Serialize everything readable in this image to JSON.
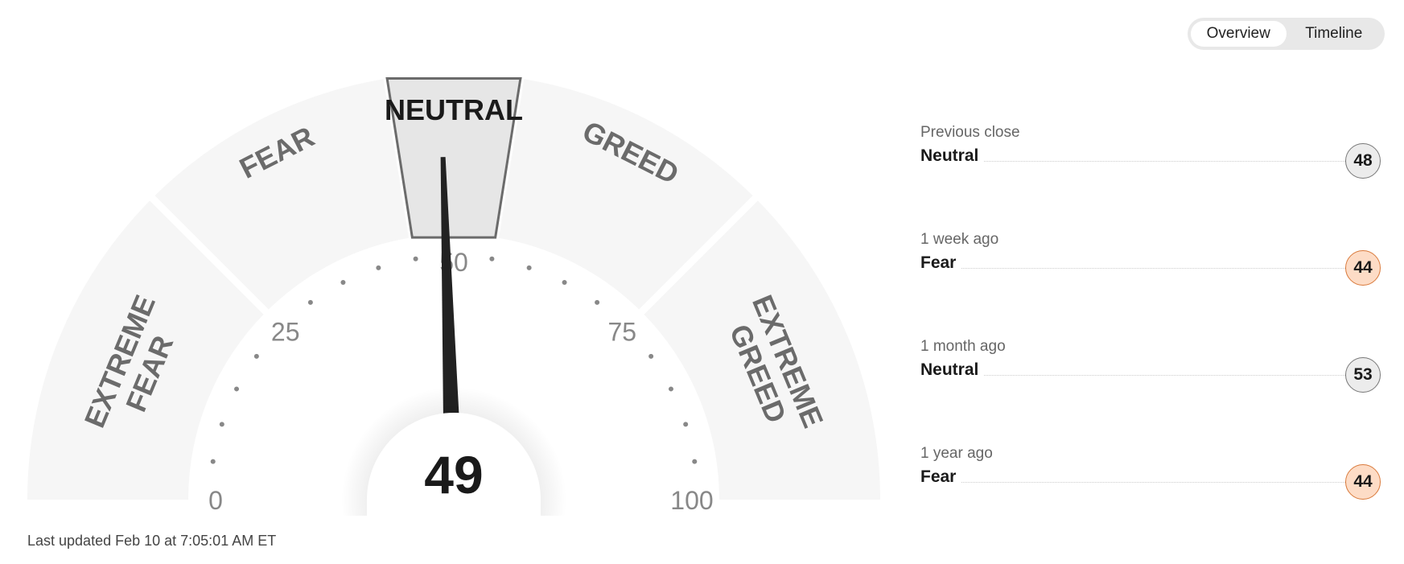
{
  "gauge": {
    "value": 49,
    "value_label": "49",
    "range": [
      0,
      100
    ],
    "segments": [
      {
        "label": [
          "EXTREME",
          "FEAR"
        ],
        "from": 0,
        "to": 25
      },
      {
        "label": [
          "FEAR"
        ],
        "from": 25,
        "to": 45
      },
      {
        "label": [
          "NEUTRAL"
        ],
        "from": 45,
        "to": 55,
        "active": true
      },
      {
        "label": [
          "GREED"
        ],
        "from": 55,
        "to": 75
      },
      {
        "label": [
          "EXTREME",
          "GREED"
        ],
        "from": 75,
        "to": 100
      }
    ],
    "tick_labels": [
      "0",
      "25",
      "50",
      "75",
      "100"
    ],
    "colors": {
      "segment": "#f6f6f6",
      "active_segment": "#e6e6e6",
      "active_stroke": "#6b6b6b",
      "needle": "#222222",
      "label": "#6b6b6b"
    }
  },
  "toggle": {
    "options": [
      "Overview",
      "Timeline"
    ],
    "selected": "Overview"
  },
  "history": [
    {
      "when": "Previous close",
      "rating": "Neutral",
      "value": "48",
      "tone": "neutral"
    },
    {
      "when": "1 week ago",
      "rating": "Fear",
      "value": "44",
      "tone": "fear"
    },
    {
      "when": "1 month ago",
      "rating": "Neutral",
      "value": "53",
      "tone": "neutral"
    },
    {
      "when": "1 year ago",
      "rating": "Fear",
      "value": "44",
      "tone": "fear"
    }
  ],
  "last_updated": "Last updated Feb 10 at 7:05:01 AM ET"
}
